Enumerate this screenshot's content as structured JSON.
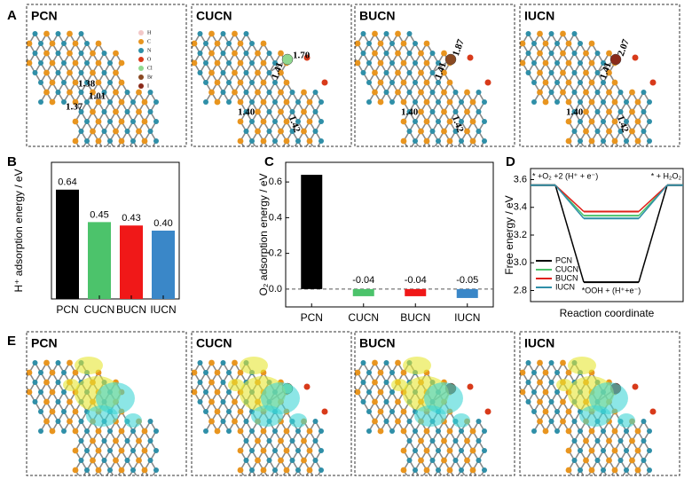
{
  "panel_labels": [
    "A",
    "B",
    "C",
    "D",
    "E"
  ],
  "panel_a": {
    "element_key": [
      "H",
      "C",
      "N",
      "O",
      "Cl",
      "Br",
      "I"
    ],
    "structures": [
      {
        "name": "PCN",
        "bonds": [
          "1.38",
          "1.01",
          "1.37"
        ]
      },
      {
        "name": "CUCN",
        "bonds": [
          "1.70",
          "1.41",
          "1.40",
          "1.42"
        ]
      },
      {
        "name": "BUCN",
        "bonds": [
          "1.87",
          "1.41",
          "1.40",
          "1.42"
        ]
      },
      {
        "name": "IUCN",
        "bonds": [
          "2.07",
          "1.41",
          "1.40",
          "1.42"
        ]
      }
    ]
  },
  "chart_data": [
    {
      "type": "bar",
      "ylabel": "H⁺ adsorption energy / eV",
      "categories": [
        "PCN",
        "CUCN",
        "BUCN",
        "IUCN"
      ],
      "values": [
        0.64,
        0.45,
        0.43,
        0.4
      ],
      "value_labels": [
        "0.64",
        "0.45",
        "0.43",
        "0.40"
      ],
      "colors": [
        "#000000",
        "#4cc36b",
        "#f01818",
        "#3a87c8"
      ],
      "ylim": [
        0,
        0.8
      ]
    },
    {
      "type": "bar",
      "ylabel": "O₂ adsorption energy / eV",
      "categories": [
        "PCN",
        "CUCN",
        "BUCN",
        "IUCN"
      ],
      "values": [
        0.64,
        -0.04,
        -0.04,
        -0.05
      ],
      "value_labels": [
        null,
        "-0.04",
        "-0.04",
        "-0.05"
      ],
      "colors": [
        "#000000",
        "#4cc36b",
        "#f01818",
        "#3a87c8"
      ],
      "ylim": [
        -0.1,
        0.71
      ],
      "yticks": [
        {
          "value": 0,
          "label": "0.0"
        },
        0.2,
        0.4,
        0.6
      ]
    },
    {
      "type": "line",
      "ylabel": "Free energy / eV",
      "xlabel": "Reaction coordinate",
      "categories": [
        "* +O₂ +2 (H⁺ + e⁻)",
        "*OOH + (H⁺+e⁻)",
        "* + H₂O₂"
      ],
      "series": [
        {
          "name": "PCN",
          "color": "#000000",
          "values": [
            3.56,
            2.86,
            3.56
          ]
        },
        {
          "name": "CUCN",
          "color": "#4cc36b",
          "values": [
            3.56,
            3.34,
            3.56
          ]
        },
        {
          "name": "BUCN",
          "color": "#e0201a",
          "values": [
            3.56,
            3.37,
            3.56
          ]
        },
        {
          "name": "IUCN",
          "color": "#2f8fa8",
          "values": [
            3.56,
            3.32,
            3.56
          ]
        }
      ],
      "ylim": [
        2.72,
        3.68
      ],
      "yticks": [
        2.8,
        {
          "value": 3,
          "label": "3.0"
        },
        3.2,
        3.4,
        3.6
      ]
    }
  ],
  "panel_e": {
    "structures": [
      "PCN",
      "CUCN",
      "BUCN",
      "IUCN"
    ]
  }
}
